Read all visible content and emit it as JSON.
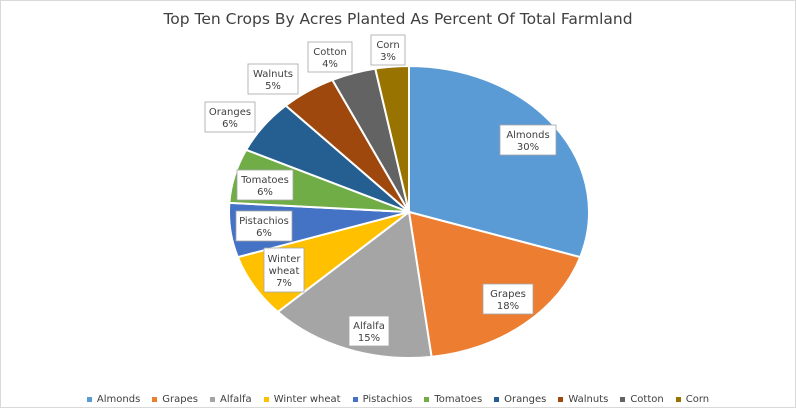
{
  "chart_data": {
    "type": "pie",
    "title": "Top Ten Crops By Acres Planted As Percent Of Total Farmland",
    "categories": [
      "Almonds",
      "Grapes",
      "Alfalfa",
      "Winter wheat",
      "Pistachios",
      "Tomatoes",
      "Oranges",
      "Walnuts",
      "Cotton",
      "Corn"
    ],
    "values": [
      30,
      18,
      15,
      7,
      6,
      6,
      6,
      5,
      4,
      3
    ],
    "value_labels": [
      "30%",
      "18%",
      "15%",
      "7%",
      "6%",
      "6%",
      "6%",
      "5%",
      "4%",
      "3%"
    ],
    "label_names": [
      "Almonds",
      "Grapes",
      "Alfalfa",
      "Winter\nwheat",
      "Pistachios",
      "Tomatoes",
      "Oranges",
      "Walnuts",
      "Cotton",
      "Corn"
    ],
    "colors": [
      "#5b9bd5",
      "#ed7d31",
      "#a5a5a5",
      "#ffc000",
      "#4472c4",
      "#70ad47",
      "#255e91",
      "#9e480e",
      "#636363",
      "#997300"
    ],
    "legend_position": "bottom"
  }
}
